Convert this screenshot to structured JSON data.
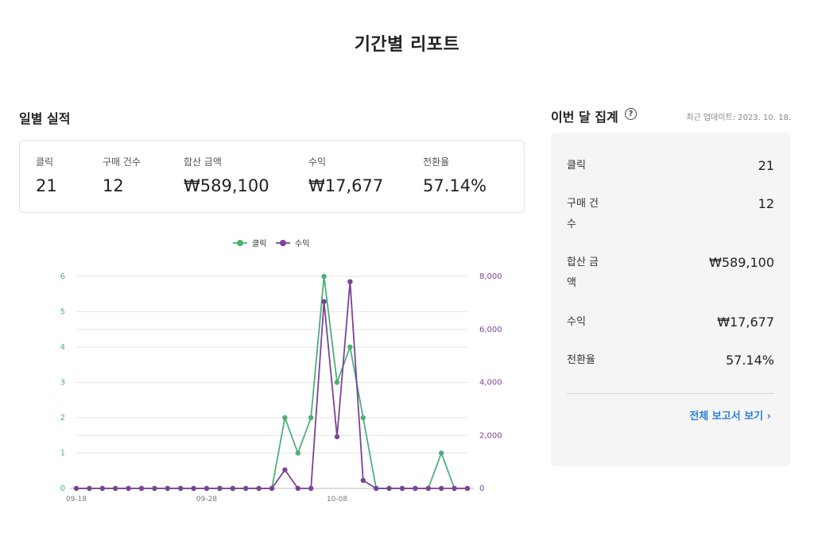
{
  "page": {
    "title": "기간별 리포트"
  },
  "daily": {
    "title": "일별 실적",
    "stats": [
      {
        "label": "클릭",
        "value": "21"
      },
      {
        "label": "구매 건수",
        "value": "12"
      },
      {
        "label": "합산 금액",
        "value": "₩589,100"
      },
      {
        "label": "수익",
        "value": "₩17,677"
      },
      {
        "label": "전환율",
        "value": "57.14%"
      }
    ]
  },
  "summary": {
    "title": "이번 달 집계",
    "help_icon": "?",
    "updated": "최근 업데이트: 2023. 10. 18.",
    "rows": [
      {
        "label": "클릭",
        "value": "21"
      },
      {
        "label": "구매 건수",
        "value": "12"
      },
      {
        "label": "합산 금액",
        "value": "₩589,100"
      },
      {
        "label": "수익",
        "value": "₩17,677"
      },
      {
        "label": "전환율",
        "value": "57.14%"
      }
    ],
    "report_link": "전체 보고서 보기 ›"
  },
  "colors": {
    "clicks": "#4caf76",
    "revenue": "#7b4397",
    "link": "#2b7fd9"
  },
  "chart_data": {
    "type": "line",
    "x": [
      "09-18",
      "09-19",
      "09-20",
      "09-21",
      "09-22",
      "09-23",
      "09-24",
      "09-25",
      "09-26",
      "09-27",
      "09-28",
      "09-29",
      "09-30",
      "10-01",
      "10-02",
      "10-03",
      "10-04",
      "10-05",
      "10-06",
      "10-07",
      "10-08",
      "10-09",
      "10-10",
      "10-11",
      "10-12",
      "10-13",
      "10-14",
      "10-15",
      "10-16",
      "10-17",
      "10-18"
    ],
    "x_tick_labels": [
      "09-18",
      "09-28",
      "10-08"
    ],
    "series": [
      {
        "name": "클릭",
        "axis": "left",
        "color": "#4caf76",
        "values": [
          0,
          0,
          0,
          0,
          0,
          0,
          0,
          0,
          0,
          0,
          0,
          0,
          0,
          0,
          0,
          0,
          2,
          1,
          2,
          6,
          3,
          4,
          2,
          0,
          0,
          0,
          0,
          0,
          1,
          0,
          0
        ]
      },
      {
        "name": "수익",
        "axis": "right",
        "color": "#7b4397",
        "values": [
          0,
          0,
          0,
          0,
          0,
          0,
          0,
          0,
          0,
          0,
          0,
          0,
          0,
          0,
          0,
          0,
          700,
          0,
          0,
          7050,
          1950,
          7800,
          300,
          0,
          0,
          0,
          0,
          0,
          0,
          0,
          0
        ]
      }
    ],
    "y_left": {
      "ylim": [
        0,
        6
      ],
      "ticks": [
        "0",
        "1",
        "2",
        "3",
        "4",
        "5",
        "6"
      ]
    },
    "y_right": {
      "ylim": [
        0,
        8000
      ],
      "ticks": [
        "0",
        "2,000",
        "4,000",
        "6,000",
        "8,000"
      ]
    },
    "legend": "top-center",
    "grid": true
  }
}
